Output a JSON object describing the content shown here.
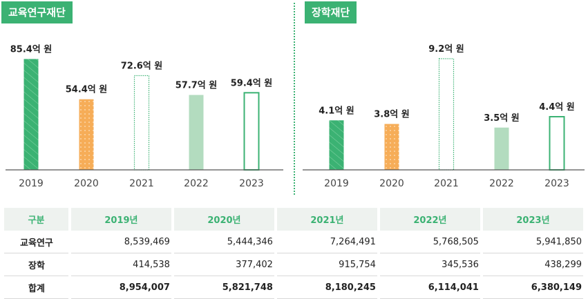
{
  "chart_data": [
    {
      "type": "bar",
      "title": "교육연구재단",
      "categories": [
        "2019",
        "2020",
        "2021",
        "2022",
        "2023"
      ],
      "values": [
        85.4,
        54.4,
        72.6,
        57.7,
        59.4
      ],
      "data_labels": [
        "85.4억 원",
        "54.4억 원",
        "72.6억 원",
        "57.7억 원",
        "59.4억 원"
      ],
      "ylim": [
        0,
        100
      ],
      "grid": false,
      "bar_styles": [
        "striped-green",
        "dotted-orange",
        "dotted-outline-green",
        "solid-light-green",
        "outline-green"
      ]
    },
    {
      "type": "bar",
      "title": "장학재단",
      "categories": [
        "2019",
        "2020",
        "2021",
        "2022",
        "2023"
      ],
      "values": [
        4.1,
        3.8,
        9.2,
        3.5,
        4.4
      ],
      "data_labels": [
        "4.1억 원",
        "3.8억 원",
        "9.2억 원",
        "3.5억 원",
        "4.4억 원"
      ],
      "ylim": [
        0,
        10
      ],
      "grid": false,
      "bar_styles": [
        "striped-green",
        "dotted-orange",
        "dotted-outline-green",
        "solid-light-green",
        "outline-green"
      ]
    }
  ],
  "colors": {
    "accent": "#3bb273",
    "orange": "#f6ad58",
    "light_green": "#b3dcbf",
    "axis": "#555555",
    "header_bg": "#eef2ef"
  },
  "table": {
    "headers": [
      "구분",
      "2019년",
      "2020년",
      "2021년",
      "2022년",
      "2023년"
    ],
    "rows": [
      {
        "label": "교육연구",
        "values": [
          "8,539,469",
          "5,444,346",
          "7,264,491",
          "5,768,505",
          "5,941,850"
        ]
      },
      {
        "label": "장학",
        "values": [
          "414,538",
          "377,402",
          "915,754",
          "345,536",
          "438,299"
        ]
      },
      {
        "label": "합계",
        "values": [
          "8,954,007",
          "5,821,748",
          "8,180,245",
          "6,114,041",
          "6,380,149"
        ]
      }
    ]
  }
}
